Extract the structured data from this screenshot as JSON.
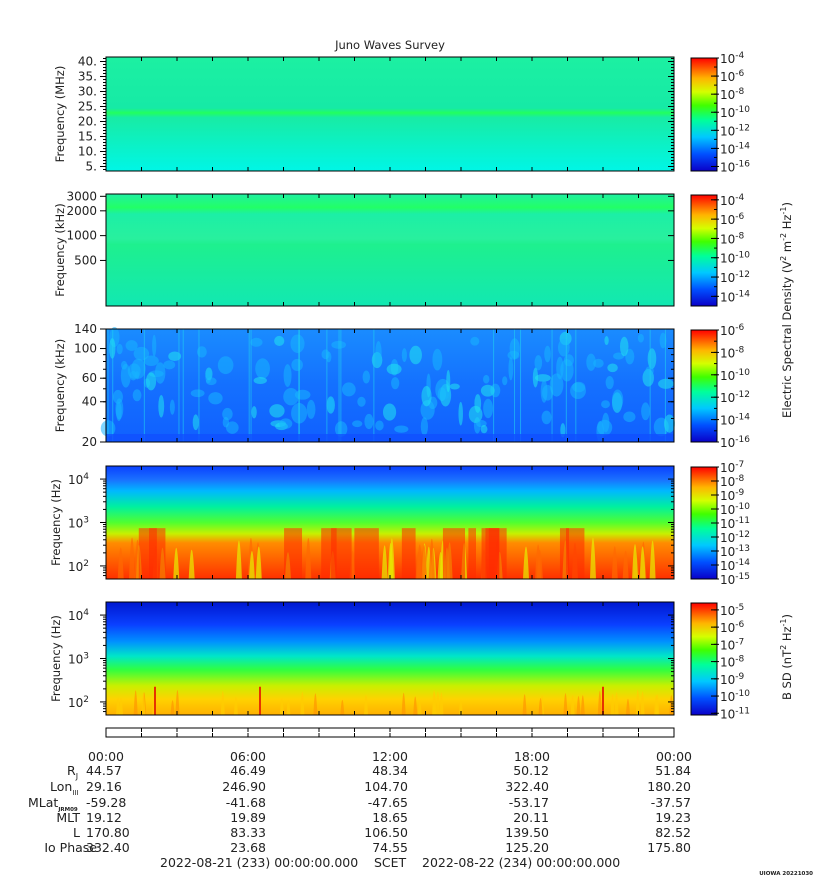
{
  "chart_data": {
    "type": "heatmap",
    "title": "Juno Waves Survey",
    "panels": [
      {
        "ylabel": "Frequency (MHz)",
        "yscale": "linear",
        "ylim": [
          3.5,
          41.5
        ],
        "yticks": [
          "5.",
          "10.",
          "15.",
          "20.",
          "25.",
          "30.",
          "35.",
          "40."
        ],
        "yticks_val": [
          5,
          10,
          15,
          20,
          25,
          30,
          35,
          40
        ],
        "cbar_ticks": [
          "-4",
          "-6",
          "-8",
          "-10",
          "-12",
          "-14",
          "-16"
        ],
        "cbar_range": [
          -16.5,
          -4
        ],
        "minor_y": true
      },
      {
        "ylabel": "Frequency (kHz)",
        "yscale": "log",
        "ylim": [
          140,
          3200
        ],
        "yticks": [
          "3000",
          "2000",
          "1000",
          "500"
        ],
        "yticks_val": [
          3000,
          2000,
          1000,
          500
        ],
        "cbar_ticks": [
          "-4",
          "-6",
          "-8",
          "-10",
          "-12",
          "-14"
        ],
        "cbar_range": [
          -15,
          -3.5
        ],
        "minor_y": false
      },
      {
        "ylabel": "Frequency (kHz)",
        "yscale": "log",
        "ylim": [
          20,
          140
        ],
        "yticks": [
          "140",
          "100",
          "60",
          "40",
          "20"
        ],
        "yticks_val": [
          140,
          100,
          60,
          40,
          20
        ],
        "cbar_ticks": [
          "-6",
          "-8",
          "-10",
          "-12",
          "-14",
          "-16"
        ],
        "cbar_range": [
          -16,
          -6
        ],
        "minor_y": true
      },
      {
        "ylabel": "Frequency (Hz)",
        "yscale": "log",
        "ylim": [
          50,
          20000
        ],
        "yticks": [
          "4",
          "3",
          "2"
        ],
        "ytick_base": "10",
        "yticks_val": [
          10000,
          1000,
          100
        ],
        "cbar_ticks": [
          "-7",
          "-8",
          "-9",
          "-10",
          "-11",
          "-12",
          "-13",
          "-14",
          "-15"
        ],
        "cbar_range": [
          -15,
          -7
        ],
        "minor_y": true
      },
      {
        "ylabel": "Frequency (Hz)",
        "yscale": "log",
        "ylim": [
          50,
          20000
        ],
        "yticks": [
          "4",
          "3",
          "2"
        ],
        "ytick_base": "10",
        "yticks_val": [
          10000,
          1000,
          100
        ],
        "cbar_ticks": [
          "-5",
          "-6",
          "-7",
          "-8",
          "-9",
          "-10",
          "-11"
        ],
        "cbar_range": [
          -11.1,
          -4.6
        ],
        "minor_y": true
      }
    ],
    "colorbar_base": "10",
    "colorbar_label_e": {
      "pre": "Electric Spectral Density (V",
      "sup1": "2",
      "mid": " m",
      "sup2": "-2",
      "mid2": " Hz",
      "sup3": "-1",
      "post": ")"
    },
    "colorbar_label_b": {
      "pre": "B SD (nT",
      "sup1": "2",
      "mid": " Hz",
      "sup2": "-1",
      "post": ")"
    },
    "x_ticks": [
      "00:00",
      "06:00",
      "12:00",
      "18:00",
      "00:00"
    ],
    "ephemeris": {
      "labels": {
        "rj": "R",
        "rj_sub": "J",
        "lon": "Lon",
        "lon_sub": "III",
        "mlat": "MLat",
        "mlat_sub": "JRM09",
        "mlt": "MLT",
        "l": "L",
        "io": "Io Phase"
      },
      "rows": [
        {
          "key": "rj",
          "values": [
            "44.57",
            "46.49",
            "48.34",
            "50.12",
            "51.84"
          ]
        },
        {
          "key": "lon",
          "values": [
            "29.16",
            "246.90",
            "104.70",
            "322.40",
            "180.20"
          ]
        },
        {
          "key": "mlat",
          "values": [
            "-59.28",
            "-41.68",
            "-47.65",
            "-53.17",
            "-37.57"
          ]
        },
        {
          "key": "mlt",
          "values": [
            "19.12",
            "19.89",
            "18.65",
            "20.11",
            "19.23"
          ]
        },
        {
          "key": "l",
          "values": [
            "170.80",
            "83.33",
            "106.50",
            "139.50",
            "82.52"
          ]
        },
        {
          "key": "io",
          "values": [
            "332.40",
            "23.68",
            "74.55",
            "125.20",
            "175.80"
          ]
        }
      ]
    },
    "time_range": {
      "start": "2022-08-21 (233) 00:00:00.000",
      "scet": "SCET",
      "end": "2022-08-22 (234) 00:00:00.000"
    },
    "stamp": "UIOWA 20221030"
  }
}
